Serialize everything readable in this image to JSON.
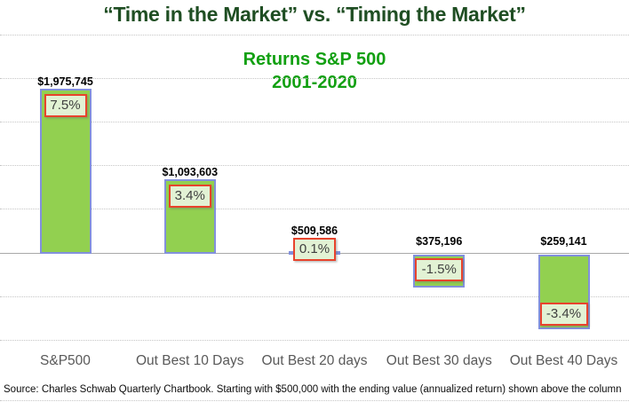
{
  "chart_data": {
    "type": "bar",
    "title": "“Time in the Market” vs. “Timing the Market”",
    "subtitle_lines": [
      "Returns S&P 500",
      "2001-2020"
    ],
    "categories": [
      "S&P500",
      "Out Best 10 Days",
      "Out Best 20 days",
      "Out Best 30 days",
      "Out Best 40 Days"
    ],
    "series": [
      {
        "name": "Annualized return (%)",
        "values": [
          7.5,
          3.4,
          0.1,
          -1.5,
          -3.4
        ],
        "labels": [
          "7.5%",
          "3.4%",
          "0.1%",
          "-1.5%",
          "-3.4%"
        ]
      },
      {
        "name": "Ending value ($)",
        "values": [
          1975745,
          1093603,
          509586,
          375196,
          259141
        ],
        "labels": [
          "$1,975,745",
          "$1,093,603",
          "$509,586",
          "$375,196",
          "$259,141"
        ]
      }
    ],
    "xlabel": "",
    "ylabel": "",
    "ylim": [
      -5,
      10
    ],
    "grid": "horizontal dotted gridlines, zero axis solid",
    "legend": "none",
    "source_note": "Source: Charles Schwab Quarterly Chartbook. Starting with $500,000 with the ending value (annualized return) shown above the column",
    "colors": {
      "bar_fill": "#92D050",
      "bar_border": "#8290DC",
      "return_box_fill": "#E2F2D4",
      "return_box_border": "#E8432C",
      "return_box_text": "#3F3F3F",
      "title_green": "#1F4E23",
      "subtitle_green": "#12A012",
      "axis_label_gray": "#595959",
      "value_label_black": "#000000"
    }
  }
}
